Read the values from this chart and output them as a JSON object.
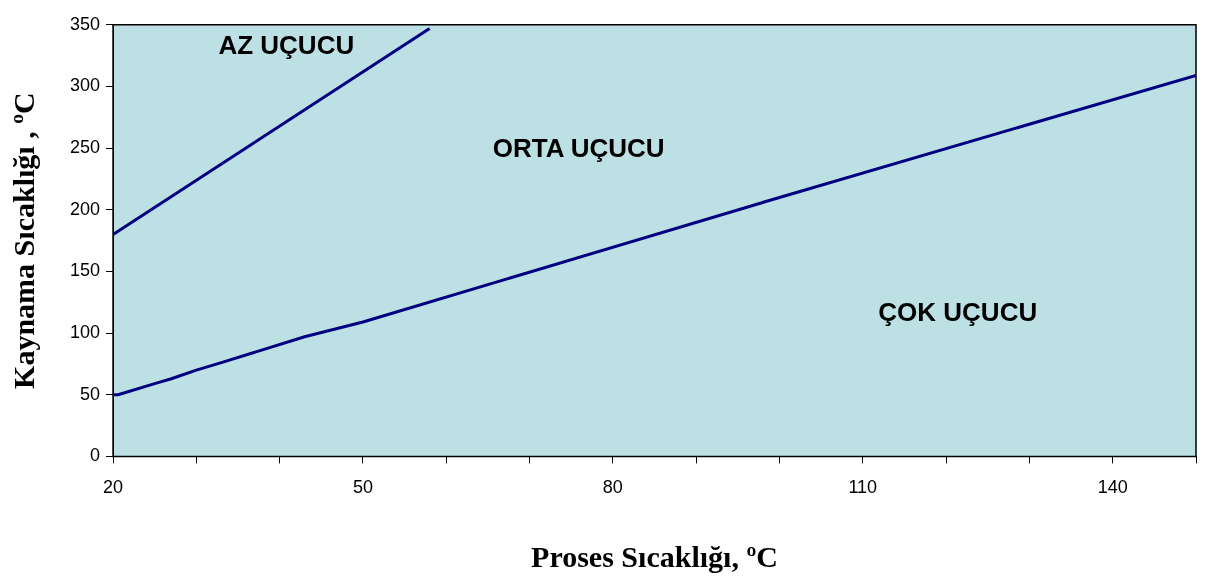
{
  "chart_data": {
    "type": "line",
    "xlabel": "Proses Sıcaklığı, ºC",
    "ylabel": "Kaynama Sıcaklığı , ºC",
    "xlim": [
      20,
      150
    ],
    "xticks": [
      20,
      {
        "value": 30,
        "label": null
      },
      {
        "value": 40,
        "label": null
      },
      50,
      {
        "value": 60,
        "label": null
      },
      {
        "value": 70,
        "label": null
      },
      80,
      {
        "value": 90,
        "label": null
      },
      {
        "value": 100,
        "label": null
      },
      110,
      {
        "value": 120,
        "label": null
      },
      {
        "value": 130,
        "label": null
      },
      140,
      {
        "value": 150,
        "label": null
      }
    ],
    "ylim": [
      0,
      350
    ],
    "yticks": [
      0,
      50,
      100,
      150,
      200,
      250,
      300,
      350
    ],
    "grid": false,
    "legend": false,
    "marker": "none",
    "line_style": "solid",
    "series": [
      {
        "color": "#000080",
        "x": [
          20,
          58
        ],
        "values": [
          180,
          347
        ]
      },
      {
        "color": "#000080",
        "x": [
          20,
          20.6,
          25,
          27,
          30,
          33,
          43,
          50,
          100,
          150
        ],
        "values": [
          50,
          50,
          59,
          63,
          70,
          76,
          97,
          109,
          210,
          309
        ]
      }
    ],
    "annotations": [
      "AZ UÇUCU",
      "ORTA UÇUCU",
      "ÇOK UÇUCU"
    ]
  }
}
